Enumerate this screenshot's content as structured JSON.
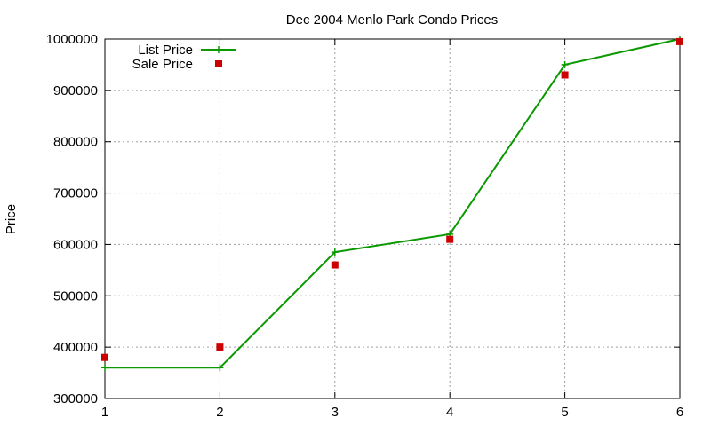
{
  "chart_data": {
    "type": "line",
    "title": "Dec 2004 Menlo Park Condo Prices",
    "xlabel": "",
    "ylabel": "Price",
    "xlim": [
      1,
      6
    ],
    "ylim": [
      300000,
      1000000
    ],
    "x_ticks": [
      1,
      2,
      3,
      4,
      5,
      6
    ],
    "y_ticks": [
      300000,
      400000,
      500000,
      600000,
      700000,
      800000,
      900000,
      1000000
    ],
    "grid": true,
    "legend_position": "top-left",
    "series": [
      {
        "name": "List Price",
        "style": "line-with-plus-markers",
        "color": "#0a9900",
        "points": [
          {
            "x": 1,
            "y": 360000
          },
          {
            "x": 2,
            "y": 360000
          },
          {
            "x": 3,
            "y": 585000
          },
          {
            "x": 4,
            "y": 620000
          },
          {
            "x": 5,
            "y": 950000
          },
          {
            "x": 6,
            "y": 1000000
          }
        ]
      },
      {
        "name": "Sale Price",
        "style": "square-markers",
        "color": "#cc0000",
        "points": [
          {
            "x": 1,
            "y": 380000
          },
          {
            "x": 2,
            "y": 400000
          },
          {
            "x": 3,
            "y": 560000
          },
          {
            "x": 4,
            "y": 610000
          },
          {
            "x": 5,
            "y": 930000
          },
          {
            "x": 6,
            "y": 995000
          }
        ]
      }
    ]
  }
}
